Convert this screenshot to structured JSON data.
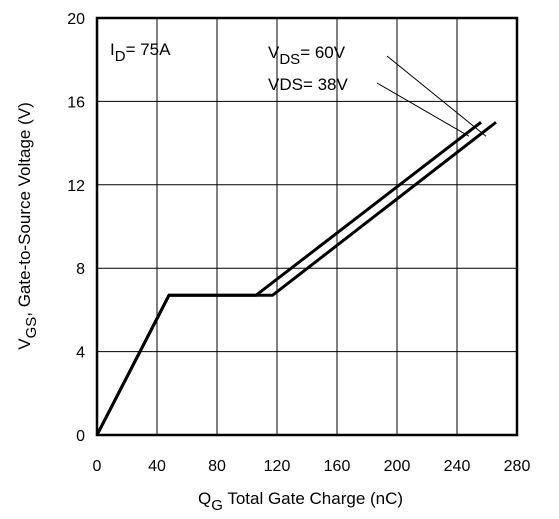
{
  "chart_data": {
    "type": "line",
    "title": "",
    "xlabel": {
      "main": "Q",
      "sub": "G",
      "rest": "  Total Gate Charge (nC)"
    },
    "ylabel": {
      "main": "V",
      "sub": "GS",
      "rest": ", Gate-to-Source Voltage (V)"
    },
    "xlim": [
      0,
      280
    ],
    "ylim": [
      0,
      20
    ],
    "x_ticks": [
      0,
      40,
      80,
      120,
      160,
      200,
      240,
      280
    ],
    "y_ticks": [
      0,
      4,
      8,
      12,
      16,
      20
    ],
    "grid": true,
    "annotations": {
      "id_label": {
        "main": "I",
        "sub": "D",
        "rest": "= 75A"
      }
    },
    "series": [
      {
        "label": {
          "main": "V",
          "sub": "DS",
          "rest": "= 60V"
        },
        "x": [
          0,
          48,
          117,
          266
        ],
        "y": [
          0,
          6.7,
          6.7,
          15.0
        ]
      },
      {
        "label": {
          "main": "VDS= 38V",
          "sub": "",
          "rest": ""
        },
        "x": [
          0,
          48,
          106,
          256
        ],
        "y": [
          0,
          6.7,
          6.7,
          15.0
        ]
      }
    ]
  }
}
